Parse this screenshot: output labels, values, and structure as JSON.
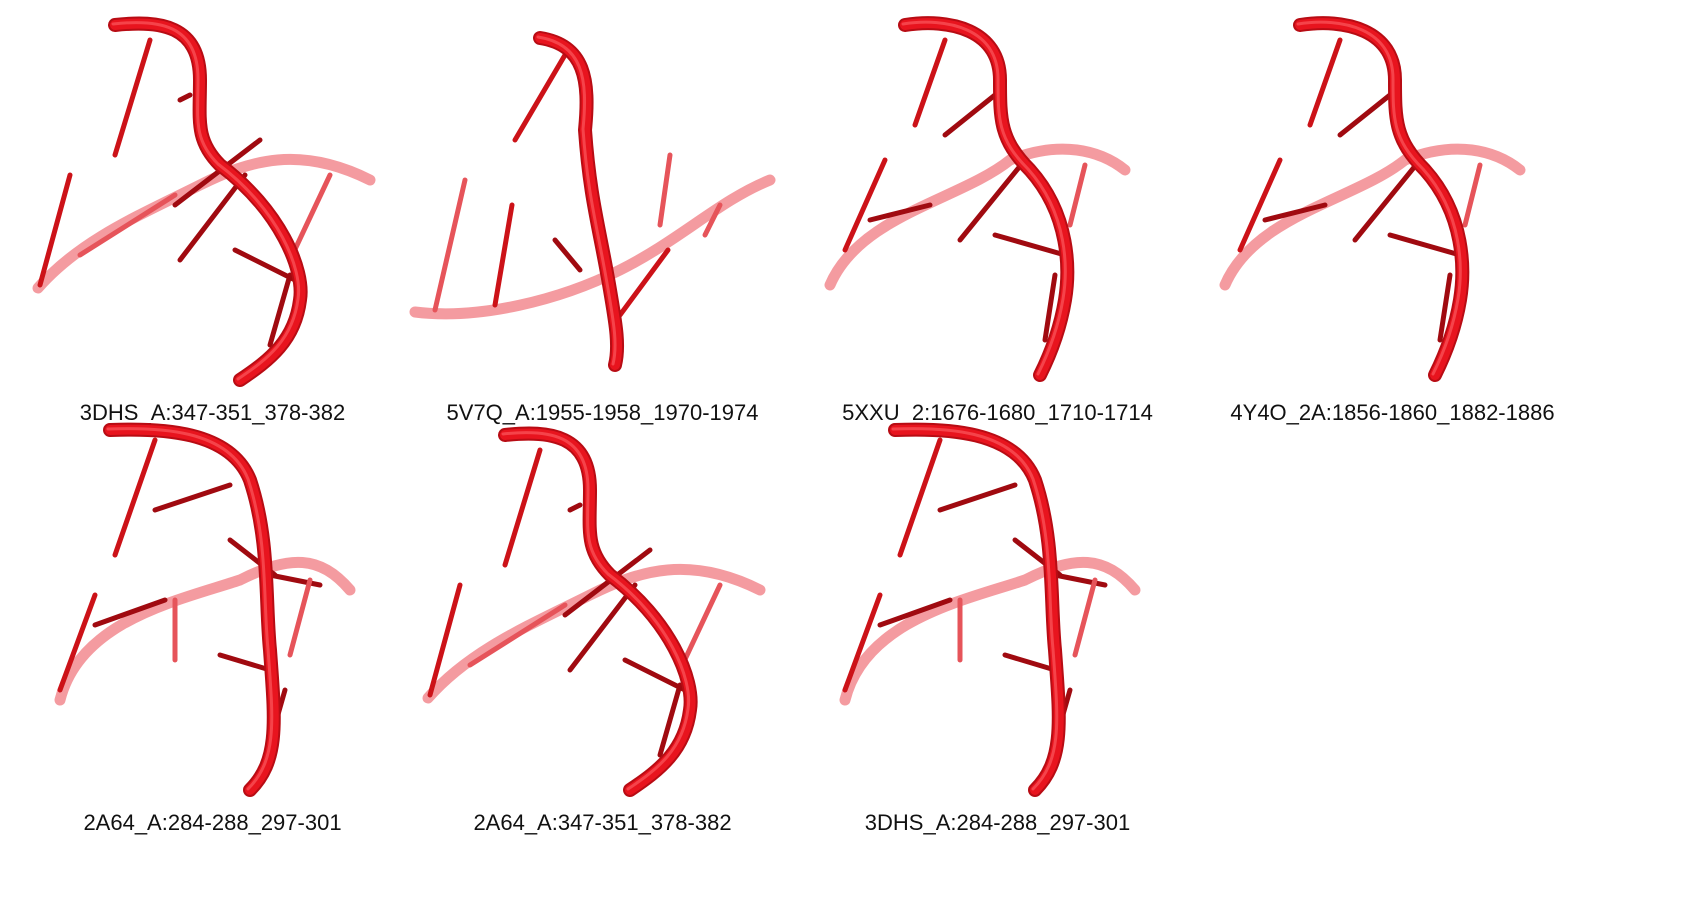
{
  "figure": {
    "colors": {
      "backbone_front": "#e8141e",
      "backbone_back": "#f07a80",
      "base_dark": "#a00a10",
      "base_mid": "#cc1218",
      "base_light": "#e6545a",
      "caption_text": "#111111"
    },
    "structures": [
      {
        "label": "3DHS_A:347-351_378-382",
        "variant": "a"
      },
      {
        "label": "5V7Q_A:1955-1958_1970-1974",
        "variant": "b"
      },
      {
        "label": "5XXU_2:1676-1680_1710-1714",
        "variant": "c"
      },
      {
        "label": "4Y4O_2A:1856-1860_1882-1886",
        "variant": "c"
      },
      {
        "label": "2A64_A:284-288_297-301",
        "variant": "d"
      },
      {
        "label": "2A64_A:347-351_378-382",
        "variant": "a"
      },
      {
        "label": "3DHS_A:284-288_297-301",
        "variant": "d"
      }
    ]
  }
}
